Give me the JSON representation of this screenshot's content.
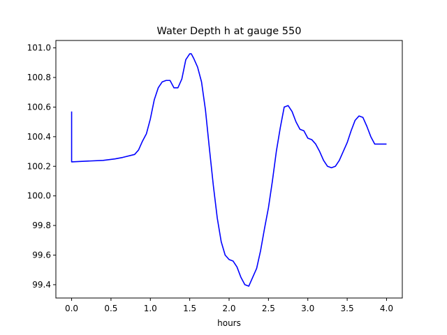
{
  "chart_data": {
    "type": "line",
    "title": "Water Depth h at gauge 550",
    "xlabel": "hours",
    "ylabel": "",
    "xlim": [
      -0.2,
      4.2
    ],
    "ylim": [
      99.31,
      101.05
    ],
    "xticks": [
      {
        "value": 0.0,
        "label": "0.0"
      },
      {
        "value": 0.5,
        "label": "0.5"
      },
      {
        "value": 1.0,
        "label": "1.0"
      },
      {
        "value": 1.5,
        "label": "1.5"
      },
      {
        "value": 2.0,
        "label": "2.0"
      },
      {
        "value": 2.5,
        "label": "2.5"
      },
      {
        "value": 3.0,
        "label": "3.0"
      },
      {
        "value": 3.5,
        "label": "3.5"
      },
      {
        "value": 4.0,
        "label": "4.0"
      }
    ],
    "yticks": [
      {
        "value": 99.4,
        "label": "99.4"
      },
      {
        "value": 99.6,
        "label": "99.6"
      },
      {
        "value": 99.8,
        "label": "99.8"
      },
      {
        "value": 100.0,
        "label": "100.0"
      },
      {
        "value": 100.2,
        "label": "100.2"
      },
      {
        "value": 100.4,
        "label": "100.4"
      },
      {
        "value": 100.6,
        "label": "100.6"
      },
      {
        "value": 100.8,
        "label": "100.8"
      },
      {
        "value": 101.0,
        "label": "101.0"
      }
    ],
    "grid": false,
    "series": [
      {
        "color": "#0000ff",
        "x": [
          0.0,
          0.0,
          0.2,
          0.4,
          0.55,
          0.65,
          0.8,
          0.85,
          0.9,
          0.95,
          1.0,
          1.05,
          1.1,
          1.15,
          1.2,
          1.25,
          1.3,
          1.35,
          1.4,
          1.45,
          1.5,
          1.52,
          1.55,
          1.6,
          1.65,
          1.7,
          1.75,
          1.8,
          1.85,
          1.9,
          1.95,
          2.0,
          2.05,
          2.1,
          2.15,
          2.2,
          2.25,
          2.3,
          2.35,
          2.4,
          2.45,
          2.5,
          2.55,
          2.6,
          2.65,
          2.7,
          2.75,
          2.8,
          2.85,
          2.9,
          2.95,
          3.0,
          3.05,
          3.1,
          3.15,
          3.2,
          3.25,
          3.3,
          3.35,
          3.4,
          3.45,
          3.5,
          3.55,
          3.6,
          3.65,
          3.7,
          3.75,
          3.8,
          3.85,
          3.9,
          3.95,
          4.0
        ],
        "y": [
          100.57,
          100.23,
          100.235,
          100.24,
          100.25,
          100.26,
          100.28,
          100.31,
          100.37,
          100.42,
          100.52,
          100.65,
          100.73,
          100.77,
          100.78,
          100.78,
          100.73,
          100.73,
          100.79,
          100.92,
          100.96,
          100.96,
          100.93,
          100.87,
          100.77,
          100.58,
          100.32,
          100.07,
          99.85,
          99.69,
          99.6,
          99.57,
          99.56,
          99.52,
          99.45,
          99.4,
          99.39,
          99.45,
          99.51,
          99.63,
          99.78,
          99.92,
          100.1,
          100.3,
          100.46,
          100.6,
          100.61,
          100.57,
          100.5,
          100.45,
          100.44,
          100.39,
          100.38,
          100.35,
          100.3,
          100.24,
          100.2,
          100.19,
          100.2,
          100.24,
          100.3,
          100.36,
          100.44,
          100.51,
          100.54,
          100.53,
          100.47,
          100.4,
          100.35,
          100.35,
          100.35,
          100.35
        ]
      }
    ]
  }
}
